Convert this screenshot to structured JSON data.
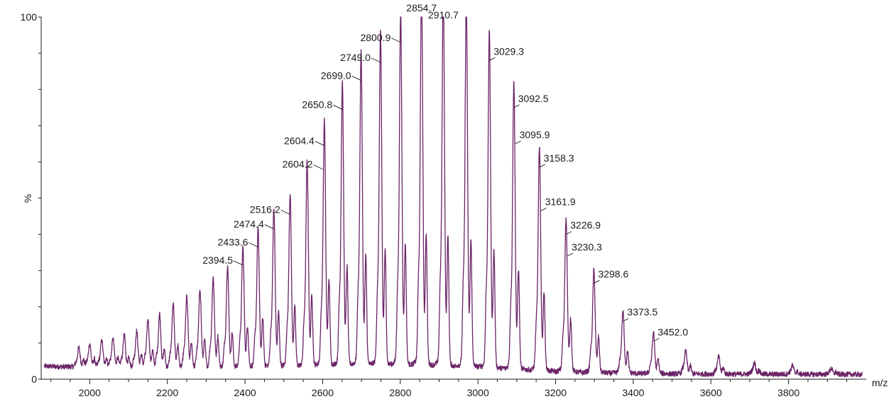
{
  "chart_data": {
    "type": "line",
    "xlabel": "m/z",
    "ylabel": "%",
    "xlim": [
      1875,
      4000
    ],
    "ylim": [
      0,
      100
    ],
    "x_ticks": [
      2000,
      2200,
      2400,
      2600,
      2800,
      3000,
      3200,
      3400,
      3600,
      3800
    ],
    "y_ticks": [
      {
        "value": 0,
        "label": "0"
      },
      {
        "value": 100,
        "label": "100"
      }
    ],
    "grid": false,
    "line_color": "#6b2468",
    "peaks": [
      {
        "x": 1972,
        "y": 5
      },
      {
        "x": 2000,
        "y": 6
      },
      {
        "x": 2031,
        "y": 7
      },
      {
        "x": 2060,
        "y": 7.5
      },
      {
        "x": 2089,
        "y": 8.5
      },
      {
        "x": 2121,
        "y": 9.5
      },
      {
        "x": 2150,
        "y": 12.5
      },
      {
        "x": 2180,
        "y": 14
      },
      {
        "x": 2215,
        "y": 16.5
      },
      {
        "x": 2250,
        "y": 18.5
      },
      {
        "x": 2284,
        "y": 20.5
      },
      {
        "x": 2318,
        "y": 23.5
      },
      {
        "x": 2355,
        "y": 26.5
      },
      {
        "x": 2394.5,
        "y": 31.5
      },
      {
        "x": 2433.6,
        "y": 36.5
      },
      {
        "x": 2474.4,
        "y": 41.5
      },
      {
        "x": 2516.2,
        "y": 45.5
      },
      {
        "x": 2560,
        "y": 54
      },
      {
        "x": 2604.4,
        "y": 64.5
      },
      {
        "x": 2650.8,
        "y": 74.5
      },
      {
        "x": 2699.0,
        "y": 82.5
      },
      {
        "x": 2749.0,
        "y": 87.5
      },
      {
        "x": 2800.9,
        "y": 93
      },
      {
        "x": 2854.7,
        "y": 100
      },
      {
        "x": 2910.7,
        "y": 98
      },
      {
        "x": 2970,
        "y": 96
      },
      {
        "x": 3029.3,
        "y": 88
      },
      {
        "x": 3092.5,
        "y": 75
      },
      {
        "x": 3158.3,
        "y": 58.5
      },
      {
        "x": 3226.9,
        "y": 40
      },
      {
        "x": 3298.6,
        "y": 26.5
      },
      {
        "x": 3373.5,
        "y": 16
      },
      {
        "x": 3452.0,
        "y": 10.5
      },
      {
        "x": 3535,
        "y": 6
      },
      {
        "x": 3620,
        "y": 4.5
      },
      {
        "x": 3712,
        "y": 3
      },
      {
        "x": 3810,
        "y": 2.3
      },
      {
        "x": 3910,
        "y": 1.6
      }
    ],
    "annotations": [
      {
        "label": "2394.5",
        "x": 2394.5,
        "y": 31.5
      },
      {
        "label": "2433.6",
        "x": 2433.6,
        "y": 36.5
      },
      {
        "label": "2474.4",
        "x": 2474.4,
        "y": 41.5
      },
      {
        "label": "2516.2",
        "x": 2516.2,
        "y": 45.5
      },
      {
        "label": "2604.2",
        "x": 2600,
        "y": 58
      },
      {
        "label": "2604.4",
        "x": 2604.4,
        "y": 64.5
      },
      {
        "label": "2650.8",
        "x": 2650.8,
        "y": 74.5
      },
      {
        "label": "2699.0",
        "x": 2699.0,
        "y": 82.5
      },
      {
        "label": "2749.0",
        "x": 2749.0,
        "y": 87.5
      },
      {
        "label": "2800.9",
        "x": 2800.9,
        "y": 93
      },
      {
        "label": "2854.7",
        "x": 2854.7,
        "y": 100
      },
      {
        "label": "2910.7",
        "x": 2910.7,
        "y": 98
      },
      {
        "label": "3029.3",
        "x": 3029.3,
        "y": 88
      },
      {
        "label": "3092.5",
        "x": 3092.5,
        "y": 75
      },
      {
        "label": "3095.9",
        "x": 3095.9,
        "y": 65
      },
      {
        "label": "3158.3",
        "x": 3158.3,
        "y": 58.5
      },
      {
        "label": "3161.9",
        "x": 3161.9,
        "y": 46.5
      },
      {
        "label": "3226.9",
        "x": 3226.9,
        "y": 40
      },
      {
        "label": "3230.3",
        "x": 3230.3,
        "y": 34
      },
      {
        "label": "3298.6",
        "x": 3298.6,
        "y": 26.5
      },
      {
        "label": "3373.5",
        "x": 3373.5,
        "y": 16
      },
      {
        "label": "3452.0",
        "x": 3452.0,
        "y": 10.5
      }
    ]
  }
}
